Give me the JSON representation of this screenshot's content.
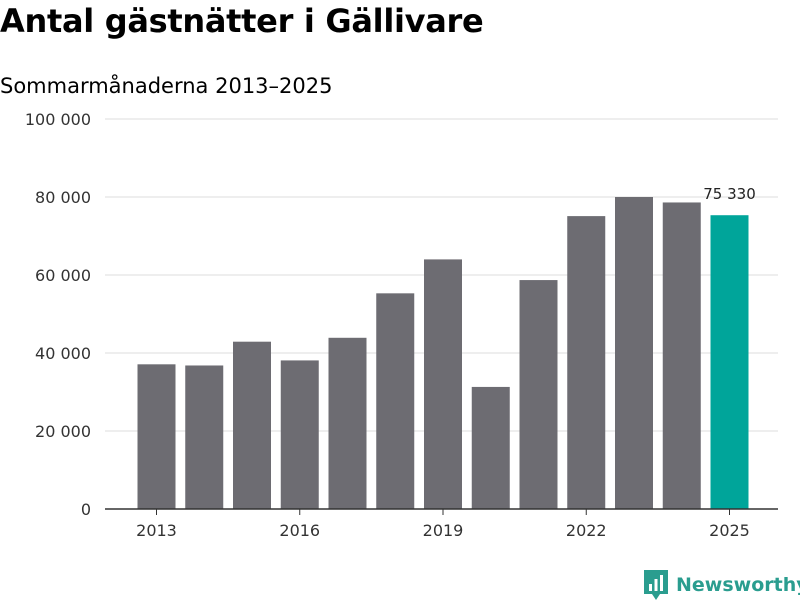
{
  "title": "Antal gästnätter i Gällivare",
  "subtitle": "Sommarmånaderna 2013–2025",
  "brand": {
    "name": "Newsworthy",
    "icon": "newsworthy-logo-icon",
    "color": "#2a9d8f"
  },
  "colors": {
    "bar": "#6d6c72",
    "highlight": "#00a59a",
    "grid": "#dddddd",
    "axis": "#333333"
  },
  "chart_data": {
    "type": "bar",
    "title": "Antal gästnätter i Gällivare",
    "subtitle": "Sommarmånaderna 2013–2025",
    "xlabel": "",
    "ylabel": "",
    "categories": [
      "2013",
      "2014",
      "2015",
      "2016",
      "2017",
      "2018",
      "2019",
      "2020",
      "2021",
      "2022",
      "2023",
      "2024",
      "2025"
    ],
    "values": [
      37100,
      36800,
      42900,
      38100,
      43900,
      55300,
      64000,
      31300,
      58700,
      75100,
      80000,
      78600,
      75330
    ],
    "x_tick_labels": [
      "2013",
      "2016",
      "2019",
      "2022",
      "2025"
    ],
    "y_ticks": [
      0,
      20000,
      40000,
      60000,
      80000,
      100000
    ],
    "y_tick_labels": [
      "0",
      "20 000",
      "40 000",
      "60 000",
      "80 000",
      "100 000"
    ],
    "ylim": [
      0,
      100000
    ],
    "grid": true,
    "highlight": {
      "category": "2025",
      "label": "75 330"
    }
  }
}
